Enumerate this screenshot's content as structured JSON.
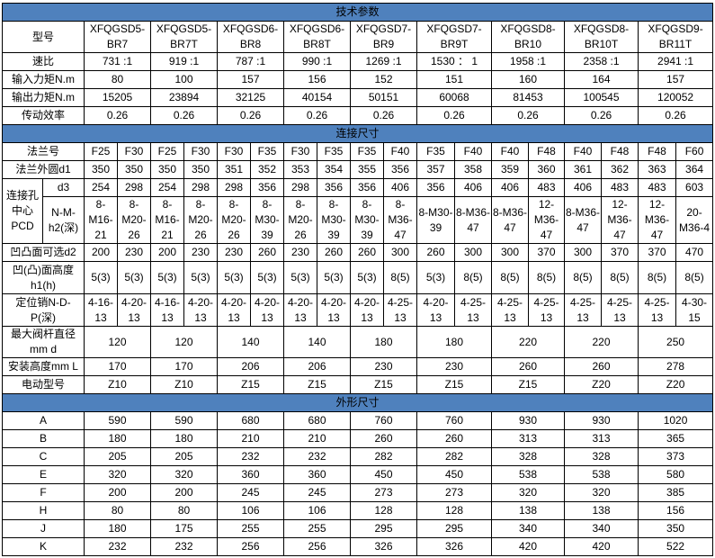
{
  "tech": {
    "title": "技术参数",
    "rows": [
      {
        "label": "型号",
        "values": [
          "XFQGSD5-BR7",
          "XFQGSD5-BR7T",
          "XFQGSD6-BR8",
          "XFQGSD6-BR8T",
          "XFQGSD7-BR9",
          "XFQGSD7-BR9T",
          "XFQGSD8-BR10",
          "XFQGSD8-BR10T",
          "XFQGSD9-BR11T"
        ]
      },
      {
        "label": "速比",
        "values": [
          "731 :1",
          "919 :1",
          "787 :1",
          "990 :1",
          "1269 :1",
          "1530 ： 1",
          "1958 :1",
          "2358 :1",
          "2941 :1"
        ]
      },
      {
        "label": "输入力矩N.m",
        "values": [
          "80",
          "100",
          "157",
          "156",
          "152",
          "151",
          "160",
          "164",
          "157"
        ]
      },
      {
        "label": "输出力矩N.m",
        "values": [
          "15205",
          "23894",
          "32125",
          "40154",
          "50151",
          "60068",
          "81453",
          "100545",
          "120052"
        ]
      },
      {
        "label": "传动效率",
        "values": [
          "0.26",
          "0.26",
          "0.26",
          "0.26",
          "0.26",
          "0.26",
          "0.26",
          "0.26",
          "0.26"
        ]
      }
    ]
  },
  "connection": {
    "title": "连接尺寸",
    "flange_no": {
      "label": "法兰号",
      "values": [
        "F25",
        "F30",
        "F25",
        "F30",
        "F30",
        "F35",
        "F30",
        "F35",
        "F35",
        "F40",
        "F35",
        "F40",
        "F40",
        "F48",
        "F40",
        "F48",
        "F48",
        "F60"
      ]
    },
    "flange_od": {
      "label": "法兰外圆d1",
      "values": [
        "350",
        "350",
        "350",
        "350",
        "351",
        "352",
        "353",
        "354",
        "355",
        "356",
        "357",
        "358",
        "359",
        "360",
        "361",
        "362",
        "363",
        "364"
      ]
    },
    "pcd_group_label": "连接孔中心PCD",
    "d3": {
      "label": "d3",
      "values": [
        "254",
        "298",
        "254",
        "298",
        "298",
        "356",
        "298",
        "356",
        "356",
        "406",
        "356",
        "406",
        "406",
        "483",
        "406",
        "483",
        "483",
        "603"
      ]
    },
    "nmh2": {
      "label": "N-M-h2(深)",
      "values": [
        "8-M16-21",
        "8-M20-26",
        "8-M16-21",
        "8-M20-26",
        "8-M20-26",
        "8-M30-39",
        "8-M20-26",
        "8-M30-39",
        "8-M30-39",
        "8-M36-47",
        "8-M30-39",
        "8-M36-47",
        "8-M36-47",
        "12-M36-47",
        "8-M36-47",
        "12-M36-47",
        "12-M36-47",
        "20-M36-4"
      ]
    },
    "d2": {
      "label": "凹凸面可选d2",
      "values": [
        "200",
        "230",
        "200",
        "230",
        "230",
        "260",
        "230",
        "260",
        "260",
        "300",
        "260",
        "300",
        "300",
        "370",
        "300",
        "370",
        "370",
        "470"
      ]
    },
    "h1": {
      "label": "凹(凸)面高度h1(h)",
      "values": [
        "5(3)",
        "5(3)",
        "5(3)",
        "5(3)",
        "5(3)",
        "5(3)",
        "5(3)",
        "5(3)",
        "5(3)",
        "8(5)",
        "5(3)",
        "8(5)",
        "8(5)",
        "8(5)",
        "8(5)",
        "8(5)",
        "8(5)",
        "8(5)"
      ]
    },
    "pin": {
      "label": "定位销N-D-P(深)",
      "values": [
        "4-16-13",
        "4-20-13",
        "4-16-13",
        "4-20-13",
        "4-20-13",
        "4-20-13",
        "4-20-13",
        "4-20-13",
        "4-20-13",
        "4-25-13",
        "4-20-13",
        "4-25-13",
        "4-25-13",
        "4-25-13",
        "4-25-13",
        "4-25-13",
        "4-25-13",
        "4-30-15"
      ]
    },
    "rows": [
      {
        "label": "最大阀杆直径mm d",
        "values": [
          "120",
          "120",
          "140",
          "140",
          "180",
          "180",
          "220",
          "220",
          "250"
        ]
      },
      {
        "label": "安装高度mm L",
        "values": [
          "170",
          "170",
          "206",
          "206",
          "230",
          "230",
          "260",
          "260",
          "278"
        ]
      },
      {
        "label": "电动型号",
        "values": [
          "Z10",
          "Z10",
          "Z15",
          "Z15",
          "Z15",
          "Z15",
          "Z15",
          "Z20",
          "Z20"
        ]
      }
    ]
  },
  "dims": {
    "title": "外形尺寸",
    "rows": [
      {
        "label": "A",
        "values": [
          "590",
          "590",
          "680",
          "680",
          "760",
          "760",
          "930",
          "930",
          "1020"
        ]
      },
      {
        "label": "B",
        "values": [
          "180",
          "180",
          "210",
          "210",
          "260",
          "260",
          "313",
          "313",
          "365"
        ]
      },
      {
        "label": "C",
        "values": [
          "205",
          "205",
          "232",
          "232",
          "282",
          "282",
          "328",
          "328",
          "373"
        ]
      },
      {
        "label": "E",
        "values": [
          "320",
          "320",
          "360",
          "360",
          "450",
          "450",
          "538",
          "538",
          "580"
        ]
      },
      {
        "label": "F",
        "values": [
          "200",
          "200",
          "245",
          "245",
          "273",
          "273",
          "320",
          "320",
          "385"
        ]
      },
      {
        "label": "H",
        "values": [
          "80",
          "80",
          "106",
          "106",
          "128",
          "128",
          "138",
          "138",
          "156"
        ]
      },
      {
        "label": "J",
        "values": [
          "180",
          "175",
          "255",
          "255",
          "295",
          "295",
          "340",
          "340",
          "350"
        ]
      },
      {
        "label": "K",
        "values": [
          "232",
          "232",
          "256",
          "256",
          "326",
          "326",
          "420",
          "420",
          "522"
        ]
      }
    ]
  },
  "colors": {
    "section_header": "#4f81bd",
    "border": "#000000"
  }
}
